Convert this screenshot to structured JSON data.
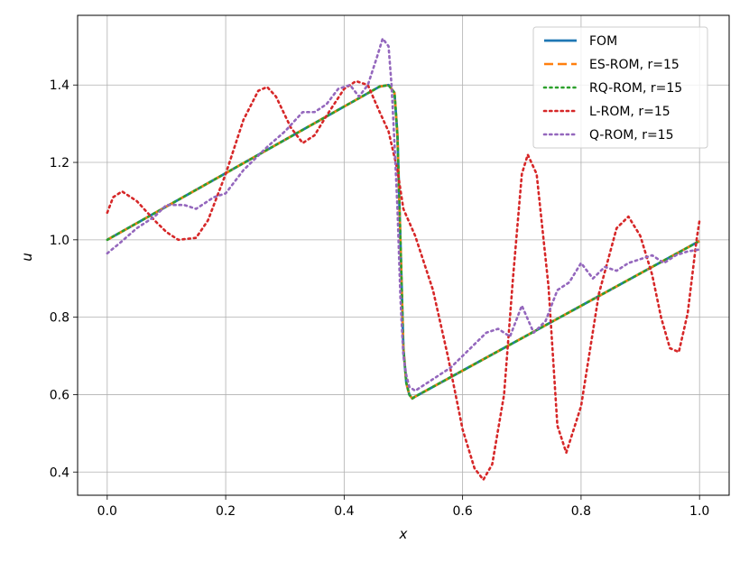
{
  "chart_data": {
    "type": "line",
    "title": "",
    "xlabel": "x",
    "ylabel": "u",
    "xlim": [
      -0.05,
      1.05
    ],
    "ylim": [
      0.34,
      1.58
    ],
    "xticks": [
      0.0,
      0.2,
      0.4,
      0.6,
      0.8,
      1.0
    ],
    "xtick_labels": [
      "0.0",
      "0.2",
      "0.4",
      "0.6",
      "0.8",
      "1.0"
    ],
    "yticks": [
      0.4,
      0.6,
      0.8,
      1.0,
      1.2,
      1.4
    ],
    "ytick_labels": [
      "0.4",
      "0.6",
      "0.8",
      "1.0",
      "1.2",
      "1.4"
    ],
    "grid": true,
    "legend_position": "top-right",
    "series": [
      {
        "name": "FOM",
        "color": "#1f77b4",
        "style": "solid",
        "x": [
          0.0,
          0.46,
          0.475,
          0.485,
          0.49,
          0.495,
          0.5,
          0.505,
          0.51,
          0.515,
          0.52,
          1.0
        ],
        "y": [
          1.0,
          1.396,
          1.4,
          1.38,
          1.27,
          1.0,
          0.72,
          0.63,
          0.6,
          0.59,
          0.595,
          0.997
        ]
      },
      {
        "name": "ES-ROM, r=15",
        "color": "#ff7f0e",
        "style": "dashed",
        "x": [
          0.0,
          0.46,
          0.475,
          0.485,
          0.49,
          0.495,
          0.5,
          0.505,
          0.51,
          0.515,
          0.52,
          1.0
        ],
        "y": [
          1.0,
          1.396,
          1.4,
          1.38,
          1.27,
          1.0,
          0.72,
          0.63,
          0.6,
          0.59,
          0.595,
          0.997
        ]
      },
      {
        "name": "RQ-ROM, r=15",
        "color": "#2ca02c",
        "style": "dotted",
        "x": [
          0.0,
          0.46,
          0.475,
          0.485,
          0.49,
          0.495,
          0.5,
          0.505,
          0.51,
          0.515,
          0.52,
          1.0
        ],
        "y": [
          1.0,
          1.396,
          1.4,
          1.38,
          1.27,
          1.0,
          0.72,
          0.63,
          0.6,
          0.59,
          0.595,
          0.997
        ]
      },
      {
        "name": "L-ROM, r=15",
        "color": "#d62728",
        "style": "dotted",
        "x": [
          0.0,
          0.01,
          0.025,
          0.05,
          0.08,
          0.1,
          0.12,
          0.15,
          0.17,
          0.2,
          0.23,
          0.255,
          0.27,
          0.285,
          0.31,
          0.33,
          0.35,
          0.37,
          0.4,
          0.42,
          0.44,
          0.46,
          0.475,
          0.49,
          0.5,
          0.52,
          0.55,
          0.575,
          0.6,
          0.62,
          0.635,
          0.65,
          0.67,
          0.685,
          0.7,
          0.71,
          0.725,
          0.745,
          0.76,
          0.775,
          0.8,
          0.83,
          0.86,
          0.88,
          0.9,
          0.92,
          0.935,
          0.95,
          0.965,
          0.98,
          0.995,
          1.0
        ],
        "y": [
          1.07,
          1.11,
          1.125,
          1.1,
          1.05,
          1.02,
          1.0,
          1.005,
          1.05,
          1.17,
          1.31,
          1.385,
          1.395,
          1.37,
          1.29,
          1.25,
          1.27,
          1.32,
          1.39,
          1.41,
          1.4,
          1.33,
          1.28,
          1.18,
          1.08,
          1.01,
          0.87,
          0.7,
          0.51,
          0.41,
          0.38,
          0.42,
          0.6,
          0.9,
          1.17,
          1.22,
          1.17,
          0.88,
          0.52,
          0.45,
          0.57,
          0.86,
          1.03,
          1.06,
          1.01,
          0.91,
          0.8,
          0.72,
          0.71,
          0.81,
          1.0,
          1.05
        ]
      },
      {
        "name": "Q-ROM, r=15",
        "color": "#9467bd",
        "style": "dotted",
        "x": [
          0.0,
          0.02,
          0.05,
          0.08,
          0.1,
          0.13,
          0.15,
          0.18,
          0.2,
          0.23,
          0.25,
          0.27,
          0.3,
          0.33,
          0.35,
          0.37,
          0.39,
          0.41,
          0.425,
          0.44,
          0.455,
          0.465,
          0.475,
          0.48,
          0.485,
          0.49,
          0.495,
          0.5,
          0.505,
          0.51,
          0.52,
          0.55,
          0.58,
          0.6,
          0.62,
          0.64,
          0.66,
          0.68,
          0.7,
          0.72,
          0.74,
          0.76,
          0.78,
          0.8,
          0.82,
          0.84,
          0.86,
          0.88,
          0.9,
          0.92,
          0.94,
          0.96,
          0.98,
          1.0
        ],
        "y": [
          0.965,
          0.99,
          1.03,
          1.06,
          1.09,
          1.09,
          1.08,
          1.11,
          1.12,
          1.18,
          1.21,
          1.24,
          1.28,
          1.33,
          1.33,
          1.35,
          1.39,
          1.4,
          1.37,
          1.4,
          1.47,
          1.52,
          1.5,
          1.4,
          1.25,
          1.08,
          0.85,
          0.7,
          0.65,
          0.62,
          0.61,
          0.64,
          0.67,
          0.7,
          0.73,
          0.76,
          0.77,
          0.75,
          0.83,
          0.76,
          0.79,
          0.87,
          0.89,
          0.94,
          0.9,
          0.93,
          0.92,
          0.94,
          0.95,
          0.96,
          0.94,
          0.96,
          0.97,
          0.975
        ]
      }
    ]
  }
}
